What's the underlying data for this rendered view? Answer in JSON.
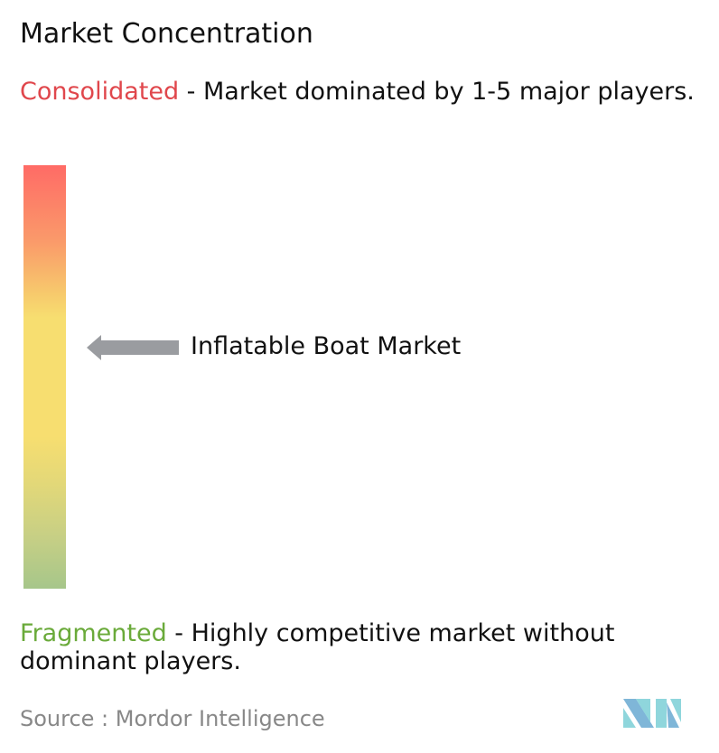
{
  "title": "Market Concentration",
  "consolidated": {
    "label": "Consolidated",
    "description": " - Market dominated by 1-5 major players.",
    "color": "#e0474c"
  },
  "fragmented": {
    "label": "Fragmented",
    "description": " - Highly competitive market without dominant players.",
    "color": "#6aaa3a"
  },
  "chart_data": {
    "type": "gradient-scale",
    "scale_top": "Consolidated",
    "scale_bottom": "Fragmented",
    "marker_label": "Inflatable Boat Market",
    "marker_level_from_bottom": 0.57,
    "gradient_colors": [
      "#ff6b66",
      "#f7de70",
      "#a6c68a"
    ]
  },
  "source": "Source :  Mordor Intelligence",
  "logo": "Mordor Intelligence logo"
}
